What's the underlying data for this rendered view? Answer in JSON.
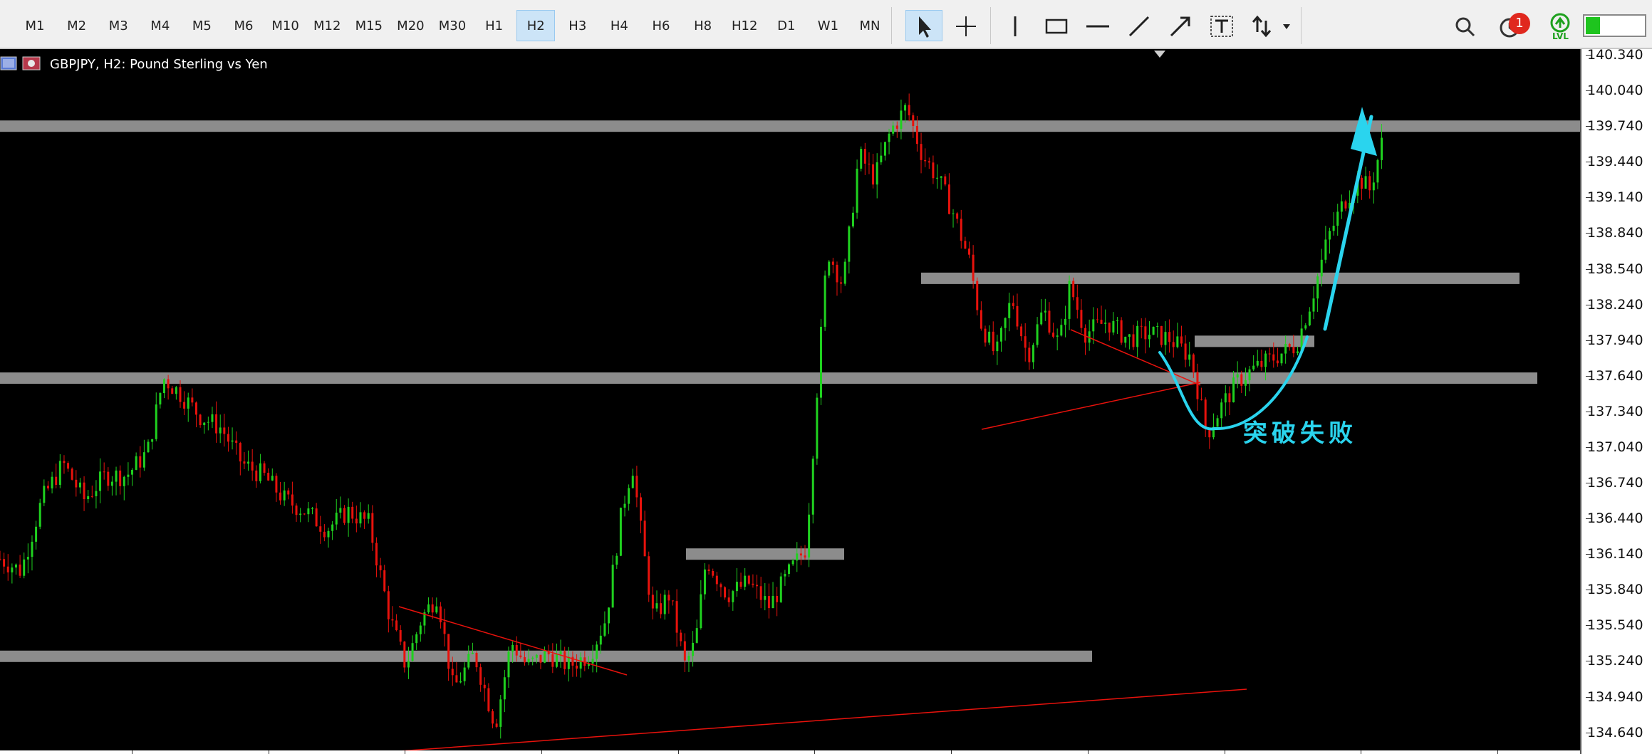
{
  "toolbar": {
    "timeframes": [
      "M1",
      "M2",
      "M3",
      "M4",
      "M5",
      "M6",
      "M10",
      "M12",
      "M15",
      "M20",
      "M30",
      "H1",
      "H2",
      "H3",
      "H4",
      "H6",
      "H8",
      "H12",
      "D1",
      "W1",
      "MN"
    ],
    "active_timeframe": "H2",
    "drawing_tools": [
      "cursor-icon",
      "crosshair-icon",
      "vertical-line-icon",
      "rectangle-icon",
      "horizontal-line-icon",
      "trendline-icon",
      "arrow-icon",
      "text-label-icon",
      "buy-sell-arrows-icon"
    ],
    "notification_count": "1",
    "lvl_label": "LVL"
  },
  "chart": {
    "symbol_label": "GBPJPY, H2:  Pound Sterling vs Yen",
    "annotation": "突破失败",
    "colors": {
      "background": "#000000",
      "bull": "#1fd11f",
      "bear": "#e8120c",
      "zones": "#8c8c8c",
      "trendlines": "#e8120c",
      "annotation": "#2ad4ee"
    }
  },
  "price_axis": {
    "ticks": [
      "140.340",
      "140.040",
      "139.740",
      "139.440",
      "139.140",
      "138.840",
      "138.540",
      "138.240",
      "137.940",
      "137.640",
      "137.340",
      "137.040",
      "136.740",
      "136.440",
      "136.140",
      "135.840",
      "135.540",
      "135.240",
      "134.940",
      "134.640"
    ]
  },
  "chart_data": {
    "type": "candlestick",
    "symbol": "GBPJPY",
    "timeframe": "H2",
    "title": "GBPJPY, H2:  Pound Sterling vs Yen",
    "ylim": [
      134.5,
      140.4
    ],
    "zones": [
      {
        "price": 139.74
      },
      {
        "price": 138.46
      },
      {
        "price": 137.93
      },
      {
        "price": 137.62
      },
      {
        "price": 136.14
      },
      {
        "price": 135.28
      }
    ],
    "price_path": [
      [
        0,
        136.1
      ],
      [
        20,
        136.0
      ],
      [
        40,
        136.6
      ],
      [
        60,
        136.9
      ],
      [
        80,
        136.6
      ],
      [
        100,
        136.8
      ],
      [
        120,
        136.8
      ],
      [
        140,
        137.0
      ],
      [
        155,
        137.62
      ],
      [
        170,
        137.5
      ],
      [
        190,
        137.3
      ],
      [
        210,
        137.2
      ],
      [
        230,
        136.9
      ],
      [
        250,
        136.8
      ],
      [
        270,
        136.6
      ],
      [
        290,
        136.5
      ],
      [
        310,
        136.35
      ],
      [
        330,
        136.5
      ],
      [
        350,
        136.4
      ],
      [
        370,
        135.6
      ],
      [
        385,
        135.2
      ],
      [
        400,
        135.6
      ],
      [
        415,
        135.8
      ],
      [
        430,
        135.0
      ],
      [
        450,
        135.3
      ],
      [
        470,
        134.7
      ],
      [
        485,
        135.4
      ],
      [
        500,
        135.2
      ],
      [
        520,
        135.3
      ],
      [
        540,
        135.2
      ],
      [
        560,
        135.3
      ],
      [
        575,
        135.6
      ],
      [
        590,
        136.5
      ],
      [
        600,
        136.9
      ],
      [
        610,
        136.2
      ],
      [
        620,
        135.6
      ],
      [
        635,
        135.8
      ],
      [
        650,
        135.2
      ],
      [
        660,
        135.4
      ],
      [
        670,
        136.1
      ],
      [
        690,
        135.8
      ],
      [
        710,
        135.9
      ],
      [
        730,
        135.7
      ],
      [
        750,
        136.0
      ],
      [
        765,
        136.2
      ],
      [
        775,
        137.5
      ],
      [
        785,
        138.7
      ],
      [
        800,
        138.4
      ],
      [
        815,
        139.5
      ],
      [
        830,
        139.3
      ],
      [
        845,
        139.7
      ],
      [
        860,
        139.9
      ],
      [
        875,
        139.5
      ],
      [
        890,
        139.3
      ],
      [
        905,
        139.0
      ],
      [
        920,
        138.6
      ],
      [
        930,
        138.1
      ],
      [
        945,
        137.8
      ],
      [
        960,
        138.3
      ],
      [
        975,
        137.8
      ],
      [
        990,
        138.2
      ],
      [
        1005,
        137.9
      ],
      [
        1015,
        138.4
      ],
      [
        1030,
        138.0
      ],
      [
        1050,
        138.1
      ],
      [
        1070,
        137.95
      ],
      [
        1090,
        138.0
      ],
      [
        1110,
        137.95
      ],
      [
        1130,
        137.8
      ],
      [
        1145,
        137.15
      ],
      [
        1160,
        137.4
      ],
      [
        1175,
        137.6
      ],
      [
        1190,
        137.7
      ],
      [
        1210,
        137.8
      ],
      [
        1230,
        137.9
      ],
      [
        1245,
        138.3
      ],
      [
        1260,
        138.8
      ],
      [
        1275,
        139.1
      ],
      [
        1290,
        139.3
      ],
      [
        1300,
        139.2
      ],
      [
        1314,
        139.7
      ]
    ]
  }
}
